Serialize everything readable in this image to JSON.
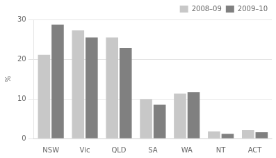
{
  "chart_data": {
    "type": "bar",
    "ylabel": "%",
    "categories": [
      "NSW",
      "Vic",
      "QLD",
      "SA",
      "WA",
      "NT",
      "ACT"
    ],
    "series": [
      {
        "name": "2008–09",
        "color": "#c8c8c8",
        "values": [
          21.1,
          27.3,
          25.5,
          9.9,
          11.3,
          1.8,
          2.1
        ]
      },
      {
        "name": "2009–10",
        "color": "#808080",
        "values": [
          28.7,
          25.5,
          22.8,
          8.5,
          11.7,
          1.2,
          1.6
        ]
      }
    ],
    "ylim": [
      0,
      30
    ],
    "yticks": [
      0,
      10,
      20,
      30
    ],
    "grid": true,
    "legend": "upper right"
  }
}
